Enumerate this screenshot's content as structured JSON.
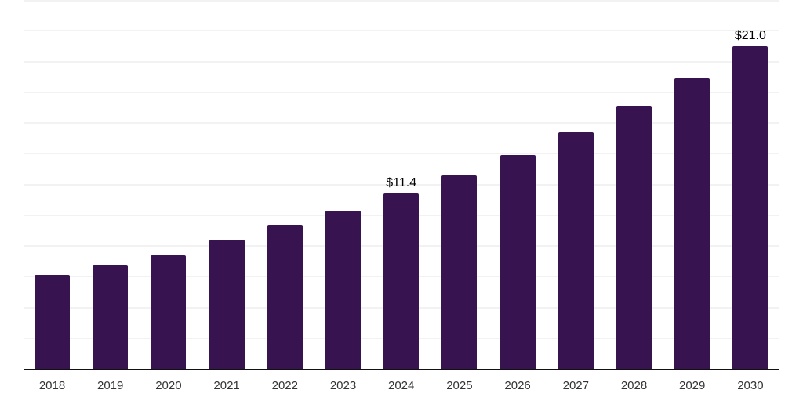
{
  "chart_data": {
    "type": "bar",
    "title": "",
    "xlabel": "",
    "ylabel": "",
    "categories": [
      "2018",
      "2019",
      "2020",
      "2021",
      "2022",
      "2023",
      "2024",
      "2025",
      "2026",
      "2027",
      "2028",
      "2029",
      "2030"
    ],
    "values": [
      6.1,
      6.8,
      7.4,
      8.4,
      9.4,
      10.3,
      11.4,
      12.6,
      13.9,
      15.4,
      17.1,
      18.9,
      21.0
    ],
    "data_labels": [
      "",
      "",
      "",
      "",
      "",
      "",
      "$11.4",
      "",
      "",
      "",
      "",
      "",
      "$21.0"
    ],
    "ylim": [
      0,
      24
    ],
    "gridline_step": 2,
    "grid": true,
    "legend": "none",
    "y_axis_labels_visible": false,
    "colors": {
      "bar": "#37134F",
      "gridline": "#F2F2F2",
      "axis": "#111111",
      "tick_label": "#333333",
      "data_label": "#000000",
      "background": "#FFFFFF"
    }
  }
}
